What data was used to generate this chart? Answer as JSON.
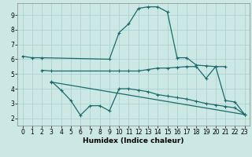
{
  "xlabel": "Humidex (Indice chaleur)",
  "bg_color": "#cce8e4",
  "line_color": "#1a6b6b",
  "grid_color": "#aacfcb",
  "xlim": [
    -0.5,
    23.5
  ],
  "ylim": [
    1.5,
    9.8
  ],
  "xticks": [
    0,
    1,
    2,
    3,
    4,
    5,
    6,
    7,
    8,
    9,
    10,
    11,
    12,
    13,
    14,
    15,
    16,
    17,
    18,
    19,
    20,
    21,
    22,
    23
  ],
  "yticks": [
    2,
    3,
    4,
    5,
    6,
    7,
    8,
    9
  ],
  "line1_x": [
    0,
    1,
    2,
    9,
    10,
    11,
    12,
    13,
    14,
    15,
    16,
    17,
    18,
    19,
    20,
    21
  ],
  "line1_y": [
    6.2,
    6.1,
    6.1,
    6.0,
    7.8,
    8.4,
    9.45,
    9.55,
    9.55,
    9.2,
    6.1,
    6.1,
    5.6,
    5.55,
    5.5,
    5.5
  ],
  "line2_x": [
    2,
    3,
    9,
    10,
    11,
    12,
    13,
    14,
    15,
    16,
    17,
    18,
    19,
    20,
    21,
    22,
    23
  ],
  "line2_y": [
    5.25,
    5.2,
    5.2,
    5.2,
    5.2,
    5.2,
    5.3,
    5.4,
    5.4,
    5.45,
    5.5,
    5.5,
    4.7,
    5.5,
    3.2,
    3.1,
    2.25
  ],
  "line3_x": [
    3,
    4,
    5,
    6,
    7,
    8,
    9,
    10,
    11,
    12,
    13,
    14,
    15,
    16,
    17,
    18,
    19,
    20,
    21,
    22,
    23
  ],
  "line3_y": [
    4.5,
    3.9,
    3.2,
    2.2,
    2.85,
    2.85,
    2.5,
    4.0,
    4.0,
    3.9,
    3.8,
    3.6,
    3.5,
    3.4,
    3.3,
    3.15,
    3.0,
    2.9,
    2.8,
    2.7,
    2.25
  ],
  "line4_x": [
    3,
    23
  ],
  "line4_y": [
    4.45,
    2.25
  ]
}
